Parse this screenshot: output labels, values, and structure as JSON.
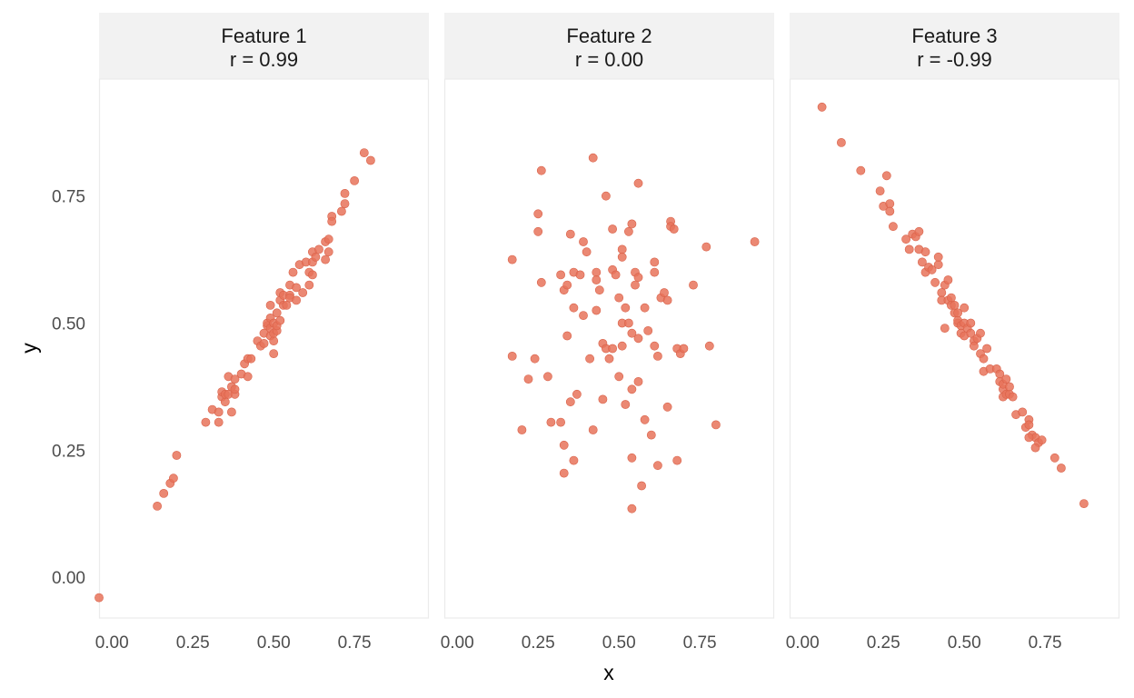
{
  "chart_data": {
    "type": "scatter",
    "xlabel": "x",
    "ylabel": "y",
    "xlim": [
      -0.04,
      0.98
    ],
    "ylim": [
      -0.08,
      0.98
    ],
    "x_ticks": [
      "0.00",
      "0.25",
      "0.50",
      "0.75"
    ],
    "y_ticks": [
      "0.00",
      "0.25",
      "0.50",
      "0.75"
    ],
    "grid": false,
    "point_color": "#e8735a",
    "strip_color": "#f2f2f2",
    "panels": [
      {
        "name": "Feature 1",
        "subtitle": "r = 0.99",
        "points": [
          [
            -0.04,
            -0.04
          ],
          [
            0.14,
            0.14
          ],
          [
            0.16,
            0.165
          ],
          [
            0.18,
            0.185
          ],
          [
            0.19,
            0.195
          ],
          [
            0.2,
            0.24
          ],
          [
            0.29,
            0.305
          ],
          [
            0.31,
            0.33
          ],
          [
            0.33,
            0.305
          ],
          [
            0.33,
            0.325
          ],
          [
            0.34,
            0.355
          ],
          [
            0.34,
            0.365
          ],
          [
            0.35,
            0.345
          ],
          [
            0.35,
            0.36
          ],
          [
            0.36,
            0.36
          ],
          [
            0.36,
            0.395
          ],
          [
            0.37,
            0.325
          ],
          [
            0.37,
            0.375
          ],
          [
            0.38,
            0.36
          ],
          [
            0.38,
            0.37
          ],
          [
            0.38,
            0.39
          ],
          [
            0.4,
            0.4
          ],
          [
            0.41,
            0.42
          ],
          [
            0.42,
            0.395
          ],
          [
            0.42,
            0.43
          ],
          [
            0.43,
            0.43
          ],
          [
            0.45,
            0.465
          ],
          [
            0.46,
            0.455
          ],
          [
            0.47,
            0.46
          ],
          [
            0.47,
            0.48
          ],
          [
            0.48,
            0.495
          ],
          [
            0.48,
            0.5
          ],
          [
            0.49,
            0.475
          ],
          [
            0.49,
            0.49
          ],
          [
            0.49,
            0.51
          ],
          [
            0.49,
            0.535
          ],
          [
            0.5,
            0.44
          ],
          [
            0.5,
            0.465
          ],
          [
            0.5,
            0.48
          ],
          [
            0.5,
            0.5
          ],
          [
            0.51,
            0.485
          ],
          [
            0.51,
            0.495
          ],
          [
            0.51,
            0.52
          ],
          [
            0.52,
            0.505
          ],
          [
            0.52,
            0.545
          ],
          [
            0.52,
            0.56
          ],
          [
            0.53,
            0.555
          ],
          [
            0.53,
            0.535
          ],
          [
            0.54,
            0.535
          ],
          [
            0.55,
            0.555
          ],
          [
            0.55,
            0.575
          ],
          [
            0.55,
            0.55
          ],
          [
            0.56,
            0.6
          ],
          [
            0.57,
            0.57
          ],
          [
            0.57,
            0.545
          ],
          [
            0.58,
            0.615
          ],
          [
            0.59,
            0.56
          ],
          [
            0.6,
            0.62
          ],
          [
            0.61,
            0.6
          ],
          [
            0.61,
            0.575
          ],
          [
            0.62,
            0.595
          ],
          [
            0.62,
            0.62
          ],
          [
            0.62,
            0.64
          ],
          [
            0.63,
            0.63
          ],
          [
            0.64,
            0.645
          ],
          [
            0.66,
            0.625
          ],
          [
            0.66,
            0.66
          ],
          [
            0.67,
            0.665
          ],
          [
            0.67,
            0.64
          ],
          [
            0.68,
            0.71
          ],
          [
            0.68,
            0.7
          ],
          [
            0.71,
            0.72
          ],
          [
            0.72,
            0.755
          ],
          [
            0.72,
            0.735
          ],
          [
            0.75,
            0.78
          ],
          [
            0.78,
            0.835
          ],
          [
            0.8,
            0.82
          ]
        ]
      },
      {
        "name": "Feature 2",
        "subtitle": "r = 0.00",
        "points": [
          [
            0.17,
            0.625
          ],
          [
            0.17,
            0.435
          ],
          [
            0.2,
            0.29
          ],
          [
            0.22,
            0.39
          ],
          [
            0.24,
            0.43
          ],
          [
            0.25,
            0.715
          ],
          [
            0.25,
            0.68
          ],
          [
            0.26,
            0.58
          ],
          [
            0.26,
            0.8
          ],
          [
            0.28,
            0.395
          ],
          [
            0.29,
            0.305
          ],
          [
            0.32,
            0.595
          ],
          [
            0.32,
            0.305
          ],
          [
            0.33,
            0.565
          ],
          [
            0.33,
            0.26
          ],
          [
            0.33,
            0.205
          ],
          [
            0.34,
            0.575
          ],
          [
            0.34,
            0.475
          ],
          [
            0.35,
            0.675
          ],
          [
            0.35,
            0.345
          ],
          [
            0.36,
            0.6
          ],
          [
            0.36,
            0.53
          ],
          [
            0.36,
            0.23
          ],
          [
            0.37,
            0.36
          ],
          [
            0.38,
            0.595
          ],
          [
            0.39,
            0.66
          ],
          [
            0.39,
            0.515
          ],
          [
            0.4,
            0.64
          ],
          [
            0.41,
            0.43
          ],
          [
            0.42,
            0.29
          ],
          [
            0.42,
            0.825
          ],
          [
            0.43,
            0.6
          ],
          [
            0.43,
            0.585
          ],
          [
            0.43,
            0.525
          ],
          [
            0.44,
            0.565
          ],
          [
            0.45,
            0.46
          ],
          [
            0.45,
            0.35
          ],
          [
            0.46,
            0.75
          ],
          [
            0.46,
            0.45
          ],
          [
            0.47,
            0.43
          ],
          [
            0.48,
            0.605
          ],
          [
            0.48,
            0.685
          ],
          [
            0.48,
            0.45
          ],
          [
            0.49,
            0.595
          ],
          [
            0.5,
            0.55
          ],
          [
            0.5,
            0.395
          ],
          [
            0.51,
            0.645
          ],
          [
            0.51,
            0.63
          ],
          [
            0.51,
            0.5
          ],
          [
            0.51,
            0.455
          ],
          [
            0.52,
            0.53
          ],
          [
            0.52,
            0.34
          ],
          [
            0.53,
            0.68
          ],
          [
            0.53,
            0.5
          ],
          [
            0.54,
            0.695
          ],
          [
            0.54,
            0.48
          ],
          [
            0.54,
            0.37
          ],
          [
            0.54,
            0.235
          ],
          [
            0.54,
            0.135
          ],
          [
            0.55,
            0.6
          ],
          [
            0.55,
            0.575
          ],
          [
            0.56,
            0.775
          ],
          [
            0.56,
            0.59
          ],
          [
            0.56,
            0.47
          ],
          [
            0.56,
            0.385
          ],
          [
            0.57,
            0.18
          ],
          [
            0.58,
            0.53
          ],
          [
            0.58,
            0.31
          ],
          [
            0.59,
            0.485
          ],
          [
            0.6,
            0.28
          ],
          [
            0.61,
            0.455
          ],
          [
            0.61,
            0.6
          ],
          [
            0.61,
            0.62
          ],
          [
            0.62,
            0.435
          ],
          [
            0.62,
            0.22
          ],
          [
            0.63,
            0.55
          ],
          [
            0.64,
            0.56
          ],
          [
            0.65,
            0.545
          ],
          [
            0.65,
            0.335
          ],
          [
            0.66,
            0.7
          ],
          [
            0.66,
            0.69
          ],
          [
            0.67,
            0.685
          ],
          [
            0.68,
            0.45
          ],
          [
            0.68,
            0.23
          ],
          [
            0.69,
            0.44
          ],
          [
            0.7,
            0.45
          ],
          [
            0.73,
            0.575
          ],
          [
            0.77,
            0.65
          ],
          [
            0.78,
            0.455
          ],
          [
            0.8,
            0.3
          ],
          [
            0.92,
            0.66
          ]
        ]
      },
      {
        "name": "Feature 3",
        "subtitle": "r = -0.99",
        "points": [
          [
            0.06,
            0.925
          ],
          [
            0.12,
            0.855
          ],
          [
            0.18,
            0.8
          ],
          [
            0.24,
            0.76
          ],
          [
            0.25,
            0.73
          ],
          [
            0.26,
            0.79
          ],
          [
            0.27,
            0.735
          ],
          [
            0.27,
            0.72
          ],
          [
            0.28,
            0.69
          ],
          [
            0.32,
            0.665
          ],
          [
            0.33,
            0.645
          ],
          [
            0.34,
            0.675
          ],
          [
            0.35,
            0.67
          ],
          [
            0.36,
            0.68
          ],
          [
            0.36,
            0.645
          ],
          [
            0.37,
            0.62
          ],
          [
            0.38,
            0.64
          ],
          [
            0.38,
            0.6
          ],
          [
            0.39,
            0.61
          ],
          [
            0.4,
            0.605
          ],
          [
            0.41,
            0.58
          ],
          [
            0.42,
            0.615
          ],
          [
            0.42,
            0.63
          ],
          [
            0.43,
            0.56
          ],
          [
            0.43,
            0.545
          ],
          [
            0.44,
            0.575
          ],
          [
            0.44,
            0.49
          ],
          [
            0.45,
            0.545
          ],
          [
            0.45,
            0.585
          ],
          [
            0.46,
            0.55
          ],
          [
            0.46,
            0.535
          ],
          [
            0.47,
            0.52
          ],
          [
            0.47,
            0.535
          ],
          [
            0.48,
            0.5
          ],
          [
            0.48,
            0.505
          ],
          [
            0.48,
            0.52
          ],
          [
            0.49,
            0.495
          ],
          [
            0.49,
            0.48
          ],
          [
            0.5,
            0.5
          ],
          [
            0.5,
            0.53
          ],
          [
            0.5,
            0.475
          ],
          [
            0.51,
            0.49
          ],
          [
            0.52,
            0.5
          ],
          [
            0.52,
            0.48
          ],
          [
            0.53,
            0.465
          ],
          [
            0.53,
            0.455
          ],
          [
            0.54,
            0.47
          ],
          [
            0.55,
            0.44
          ],
          [
            0.55,
            0.48
          ],
          [
            0.56,
            0.405
          ],
          [
            0.56,
            0.43
          ],
          [
            0.57,
            0.45
          ],
          [
            0.58,
            0.41
          ],
          [
            0.6,
            0.41
          ],
          [
            0.61,
            0.4
          ],
          [
            0.61,
            0.385
          ],
          [
            0.62,
            0.37
          ],
          [
            0.62,
            0.38
          ],
          [
            0.62,
            0.355
          ],
          [
            0.63,
            0.39
          ],
          [
            0.63,
            0.36
          ],
          [
            0.64,
            0.36
          ],
          [
            0.64,
            0.375
          ],
          [
            0.65,
            0.355
          ],
          [
            0.66,
            0.32
          ],
          [
            0.68,
            0.325
          ],
          [
            0.69,
            0.295
          ],
          [
            0.7,
            0.31
          ],
          [
            0.71,
            0.28
          ],
          [
            0.72,
            0.275
          ],
          [
            0.73,
            0.265
          ],
          [
            0.74,
            0.27
          ],
          [
            0.72,
            0.255
          ],
          [
            0.7,
            0.3
          ],
          [
            0.7,
            0.275
          ],
          [
            0.78,
            0.235
          ],
          [
            0.8,
            0.215
          ],
          [
            0.87,
            0.145
          ]
        ]
      }
    ]
  }
}
